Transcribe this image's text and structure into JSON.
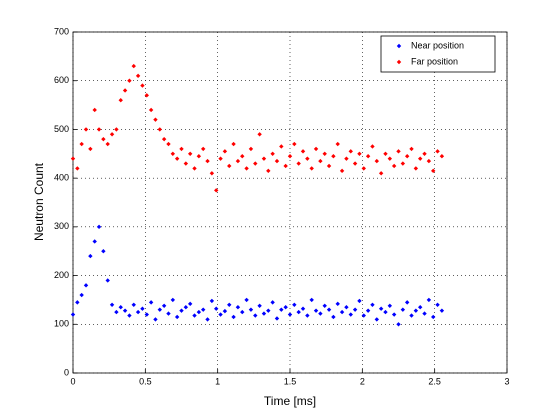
{
  "chart_data": {
    "type": "scatter",
    "xlabel": "Time [ms]",
    "ylabel": "Neutron Count",
    "xlim": [
      0,
      3
    ],
    "ylim": [
      0,
      700
    ],
    "xticks": [
      0,
      0.5,
      1,
      1.5,
      2,
      2.5,
      3
    ],
    "yticks": [
      0,
      100,
      200,
      300,
      400,
      500,
      600,
      700
    ],
    "grid": true,
    "legend": "upper right",
    "x": [
      0,
      0.03,
      0.06,
      0.09,
      0.12,
      0.15,
      0.18,
      0.21,
      0.24,
      0.27,
      0.3,
      0.33,
      0.36,
      0.39,
      0.42,
      0.45,
      0.48,
      0.51,
      0.54,
      0.57,
      0.6,
      0.63,
      0.66,
      0.69,
      0.72,
      0.75,
      0.78,
      0.81,
      0.84,
      0.87,
      0.9,
      0.93,
      0.96,
      0.99,
      1.02,
      1.05,
      1.08,
      1.11,
      1.14,
      1.17,
      1.2,
      1.23,
      1.26,
      1.29,
      1.32,
      1.35,
      1.38,
      1.41,
      1.44,
      1.47,
      1.5,
      1.53,
      1.56,
      1.59,
      1.62,
      1.65,
      1.68,
      1.71,
      1.74,
      1.77,
      1.8,
      1.83,
      1.86,
      1.89,
      1.92,
      1.95,
      1.98,
      2.01,
      2.04,
      2.07,
      2.1,
      2.13,
      2.16,
      2.19,
      2.22,
      2.25,
      2.28,
      2.31,
      2.34,
      2.37,
      2.4,
      2.43,
      2.46,
      2.49,
      2.52,
      2.55
    ],
    "series": [
      {
        "name": "Near position",
        "color": "#0000ff",
        "values": [
          120,
          145,
          160,
          180,
          240,
          270,
          300,
          250,
          190,
          140,
          125,
          135,
          128,
          118,
          140,
          125,
          132,
          120,
          145,
          110,
          130,
          138,
          122,
          150,
          115,
          128,
          135,
          142,
          118,
          125,
          130,
          110,
          148,
          132,
          120,
          127,
          140,
          115,
          135,
          125,
          150,
          130,
          118,
          138,
          122,
          128,
          145,
          112,
          130,
          135,
          120,
          140,
          125,
          132,
          118,
          150,
          128,
          122,
          138,
          130,
          115,
          142,
          125,
          135,
          120,
          130,
          148,
          118,
          128,
          140,
          110,
          132,
          125,
          138,
          120,
          100,
          130,
          145,
          118,
          128,
          135,
          122,
          150,
          115,
          140,
          128
        ]
      },
      {
        "name": "Far position",
        "color": "#ff0000",
        "values": [
          440,
          420,
          470,
          500,
          460,
          540,
          500,
          480,
          470,
          490,
          500,
          560,
          580,
          600,
          630,
          610,
          590,
          570,
          540,
          520,
          500,
          480,
          470,
          450,
          440,
          460,
          430,
          450,
          420,
          445,
          460,
          435,
          410,
          375,
          440,
          455,
          425,
          470,
          435,
          445,
          420,
          460,
          430,
          490,
          440,
          415,
          450,
          435,
          465,
          425,
          445,
          470,
          430,
          455,
          440,
          420,
          460,
          435,
          450,
          425,
          445,
          470,
          415,
          440,
          455,
          430,
          450,
          420,
          445,
          465,
          435,
          410,
          450,
          440,
          425,
          455,
          430,
          445,
          460,
          420,
          440,
          450,
          435,
          415,
          455,
          445
        ]
      }
    ]
  }
}
